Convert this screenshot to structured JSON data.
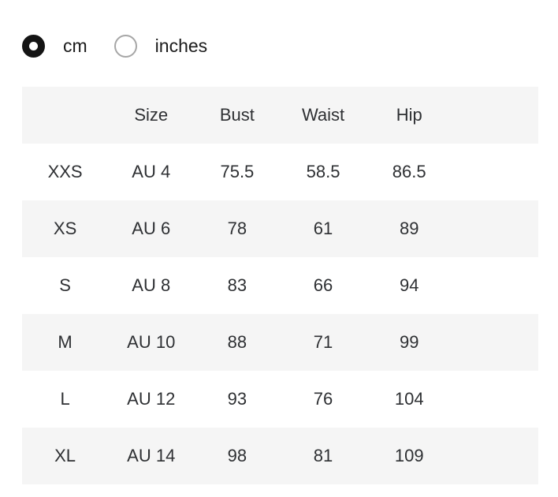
{
  "unit_selector": {
    "options": [
      {
        "label": "cm",
        "selected": true
      },
      {
        "label": "inches",
        "selected": false
      }
    ]
  },
  "size_table": {
    "headers": [
      "",
      "Size",
      "Bust",
      "Waist",
      "Hip",
      ""
    ],
    "rows": [
      {
        "label": "XXS",
        "size": "AU 4",
        "bust": "75.5",
        "waist": "58.5",
        "hip": "86.5"
      },
      {
        "label": "XS",
        "size": "AU 6",
        "bust": "78",
        "waist": "61",
        "hip": "89"
      },
      {
        "label": "S",
        "size": "AU 8",
        "bust": "83",
        "waist": "66",
        "hip": "94"
      },
      {
        "label": "M",
        "size": "AU 10",
        "bust": "88",
        "waist": "71",
        "hip": "99"
      },
      {
        "label": "L",
        "size": "AU 12",
        "bust": "93",
        "waist": "76",
        "hip": "104"
      },
      {
        "label": "XL",
        "size": "AU 14",
        "bust": "98",
        "waist": "81",
        "hip": "109"
      }
    ]
  },
  "colors": {
    "row_alt_bg": "#f5f5f5",
    "radio_selected": "#141414",
    "radio_unselected_border": "#a6a6a6",
    "table_text": "#2e3033",
    "label_text": "#1b1b1b"
  }
}
